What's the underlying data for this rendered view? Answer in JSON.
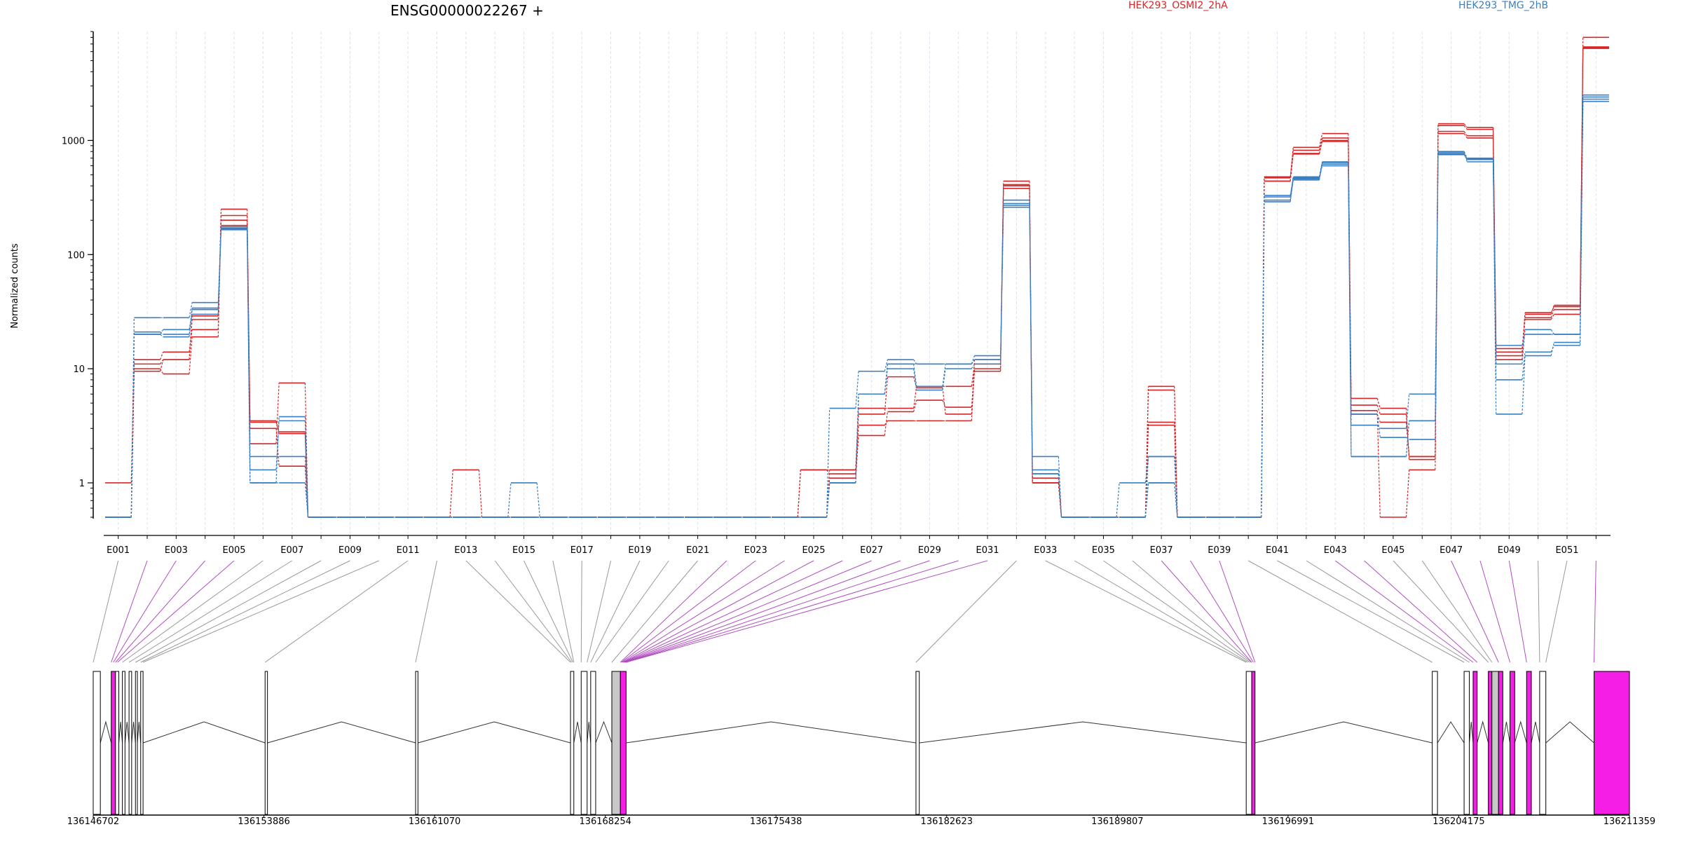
{
  "colors": {
    "series_a": "#d62728",
    "series_b": "#3a7fc1",
    "connector_plain": "#999999",
    "connector_highlight": "#b04fc0",
    "exon_plain": "#ffffff",
    "exon_grey": "#c8c8c8",
    "exon_magenta": "#f41ee6",
    "grid": "#dde3ee"
  },
  "chart_data": {
    "type": "line",
    "title": "ENSG00000022267 +",
    "ylabel": "Normalized counts",
    "yscale": "log",
    "ylim": [
      0.5,
      9000
    ],
    "yticks": [
      1,
      10,
      100,
      1000
    ],
    "ytick_labels": [
      "1",
      "10",
      "100",
      "1000"
    ],
    "legend": [
      {
        "name": "HEK293_OSMI2_2hA",
        "color": "#d62728"
      },
      {
        "name": "HEK293_TMG_2hB",
        "color": "#3a7fc1"
      }
    ],
    "exon_tick_labels": [
      "E001",
      "E003",
      "E005",
      "E007",
      "E009",
      "E011",
      "E013",
      "E015",
      "E017",
      "E019",
      "E021",
      "E023",
      "E025",
      "E027",
      "E029",
      "E031",
      "E033",
      "E035",
      "E037",
      "E039",
      "E041",
      "E043",
      "E045",
      "E047",
      "E049",
      "E051"
    ],
    "exon_count": 52,
    "exon_width_units": 0.9,
    "series": [
      {
        "group": "HEK293_OSMI2_2hA",
        "values": [
          1,
          12,
          14,
          22,
          250,
          3.5,
          2.7,
          0.5,
          0.5,
          0.5,
          0.5,
          0.5,
          1.3,
          0.5,
          0.5,
          0.5,
          0.5,
          0.5,
          0.5,
          0.5,
          0.5,
          0.5,
          0.5,
          0.5,
          1.3,
          1.3,
          4.5,
          4.5,
          7,
          7,
          11,
          440,
          1.1,
          0.5,
          0.5,
          0.5,
          7,
          0.5,
          0.5,
          0.5,
          440,
          760,
          1000,
          5.5,
          4.5,
          1.6,
          1400,
          1300,
          15,
          28,
          33,
          8000
        ]
      },
      {
        "group": "HEK293_OSMI2_2hA",
        "values": [
          0.5,
          10,
          9,
          19,
          220,
          2.2,
          7.5,
          0.5,
          0.5,
          0.5,
          0.5,
          0.5,
          0.5,
          0.5,
          0.5,
          0.5,
          0.5,
          0.5,
          0.5,
          0.5,
          0.5,
          0.5,
          0.5,
          0.5,
          1.3,
          1.2,
          3.2,
          3.5,
          3.5,
          3.5,
          10,
          410,
          1.0,
          0.5,
          0.5,
          0.5,
          6.5,
          0.5,
          0.5,
          0.5,
          470,
          870,
          1150,
          4.3,
          0.5,
          1.3,
          1200,
          1100,
          12,
          30,
          36,
          6500
        ]
      },
      {
        "group": "HEK293_OSMI2_2hA",
        "values": [
          0.5,
          11,
          12,
          29,
          200,
          3.0,
          1.4,
          0.5,
          0.5,
          0.5,
          0.5,
          0.5,
          0.5,
          0.5,
          0.5,
          0.5,
          0.5,
          0.5,
          0.5,
          0.5,
          0.5,
          0.5,
          0.5,
          0.5,
          0.5,
          1.1,
          2.6,
          4.2,
          5.3,
          4.6,
          9.5,
          400,
          1.0,
          0.5,
          0.5,
          0.5,
          3.4,
          0.5,
          0.5,
          0.5,
          480,
          820,
          1050,
          4.8,
          4.0,
          1.7,
          1350,
          1250,
          14,
          31,
          35,
          6600
        ]
      },
      {
        "group": "HEK293_OSMI2_2hA",
        "values": [
          0.5,
          9.5,
          12,
          27,
          180,
          3.4,
          2.8,
          0.5,
          0.5,
          0.5,
          0.5,
          0.5,
          0.5,
          0.5,
          0.5,
          0.5,
          0.5,
          0.5,
          0.5,
          0.5,
          0.5,
          0.5,
          0.5,
          0.5,
          0.5,
          1.3,
          4.0,
          8.5,
          6.8,
          4.0,
          12,
          380,
          1.0,
          0.5,
          0.5,
          0.5,
          3.2,
          0.5,
          0.5,
          0.5,
          440,
          770,
          980,
          4.0,
          3.4,
          1.7,
          1150,
          1050,
          13,
          27,
          30,
          6400
        ]
      },
      {
        "group": "HEK293_TMG_2hB",
        "values": [
          0.5,
          28,
          28,
          38,
          170,
          1.7,
          1.7,
          0.5,
          0.5,
          0.5,
          0.5,
          0.5,
          0.5,
          0.5,
          0.5,
          0.5,
          0.5,
          0.5,
          0.5,
          0.5,
          0.5,
          0.5,
          0.5,
          0.5,
          0.5,
          4.5,
          9.5,
          12,
          11,
          11,
          13,
          300,
          1.7,
          0.5,
          0.5,
          0.5,
          1.7,
          0.5,
          0.5,
          0.5,
          320,
          480,
          650,
          1.7,
          1.7,
          3.5,
          800,
          700,
          16,
          20,
          20,
          2500
        ]
      },
      {
        "group": "HEK293_TMG_2hB",
        "values": [
          0.5,
          21,
          20,
          34,
          165,
          1.0,
          1.0,
          0.5,
          0.5,
          0.5,
          0.5,
          0.5,
          0.5,
          0.5,
          0.5,
          0.5,
          0.5,
          0.5,
          0.5,
          0.5,
          0.5,
          0.5,
          0.5,
          0.5,
          0.5,
          1.0,
          6.0,
          11,
          11,
          11,
          12,
          270,
          1.2,
          0.5,
          0.5,
          0.5,
          1.0,
          0.5,
          0.5,
          0.5,
          330,
          470,
          640,
          3.2,
          3.0,
          6.0,
          760,
          690,
          8,
          14,
          16,
          2200
        ]
      },
      {
        "group": "HEK293_TMG_2hB",
        "values": [
          0.5,
          20,
          22,
          30,
          168,
          1.3,
          3.5,
          0.5,
          0.5,
          0.5,
          0.5,
          0.5,
          0.5,
          0.5,
          0.5,
          0.5,
          0.5,
          0.5,
          0.5,
          0.5,
          0.5,
          0.5,
          0.5,
          0.5,
          0.5,
          1.0,
          6.0,
          10,
          6.5,
          10,
          11,
          260,
          1.2,
          0.5,
          0.5,
          0.5,
          1.0,
          0.5,
          0.5,
          0.5,
          300,
          450,
          620,
          1.7,
          1.7,
          3.5,
          780,
          650,
          11,
          22,
          20,
          2300
        ]
      },
      {
        "group": "HEK293_TMG_2hB",
        "values": [
          0.5,
          20,
          19,
          33,
          175,
          1.0,
          3.8,
          0.5,
          0.5,
          0.5,
          0.5,
          0.5,
          0.5,
          0.5,
          1.0,
          0.5,
          0.5,
          0.5,
          0.5,
          0.5,
          0.5,
          0.5,
          0.5,
          0.5,
          0.5,
          1.0,
          6.0,
          11,
          7,
          11,
          12,
          280,
          1.3,
          0.5,
          0.5,
          1.0,
          1.7,
          0.5,
          0.5,
          0.5,
          290,
          460,
          600,
          4.0,
          2.5,
          2.4,
          750,
          680,
          4,
          13,
          17,
          2400
        ]
      }
    ],
    "genomic_axis": {
      "tick_labels": [
        "136146702",
        "136153886",
        "136161070",
        "136168254",
        "136175438",
        "136182623",
        "136189807",
        "136196991",
        "136204175",
        "136211359"
      ],
      "range": [
        136146702,
        136211359
      ]
    },
    "exon_models": [
      {
        "start": 136146702,
        "end": 136147002,
        "fill": "plain"
      },
      {
        "start": 136147460,
        "end": 136147640,
        "fill": "magenta"
      },
      {
        "start": 136147640,
        "end": 136147780,
        "fill": "plain"
      },
      {
        "start": 136147930,
        "end": 136148040,
        "fill": "plain"
      },
      {
        "start": 136148210,
        "end": 136148320,
        "fill": "plain"
      },
      {
        "start": 136148480,
        "end": 136148560,
        "fill": "plain"
      },
      {
        "start": 136148700,
        "end": 136148800,
        "fill": "plain"
      },
      {
        "start": 136153936,
        "end": 136154036,
        "fill": "plain"
      },
      {
        "start": 136160270,
        "end": 136160370,
        "fill": "plain"
      },
      {
        "start": 136166790,
        "end": 136166930,
        "fill": "plain"
      },
      {
        "start": 136167240,
        "end": 136167490,
        "fill": "plain"
      },
      {
        "start": 136167640,
        "end": 136167850,
        "fill": "plain"
      },
      {
        "start": 136168530,
        "end": 136168890,
        "fill": "grey"
      },
      {
        "start": 136168890,
        "end": 136169130,
        "fill": "magenta"
      },
      {
        "start": 136181330,
        "end": 136181470,
        "fill": "plain"
      },
      {
        "start": 136195230,
        "end": 136195460,
        "fill": "plain"
      },
      {
        "start": 136195460,
        "end": 136195600,
        "fill": "magenta"
      },
      {
        "start": 136203060,
        "end": 136203280,
        "fill": "plain"
      },
      {
        "start": 136204400,
        "end": 136204620,
        "fill": "plain"
      },
      {
        "start": 136204780,
        "end": 136204950,
        "fill": "magenta"
      },
      {
        "start": 136205420,
        "end": 136205570,
        "fill": "magenta"
      },
      {
        "start": 136205570,
        "end": 136205850,
        "fill": "grey"
      },
      {
        "start": 136205850,
        "end": 136206030,
        "fill": "magenta"
      },
      {
        "start": 136206330,
        "end": 136206530,
        "fill": "magenta"
      },
      {
        "start": 136207030,
        "end": 136207230,
        "fill": "magenta"
      },
      {
        "start": 136207580,
        "end": 136207840,
        "fill": "plain"
      },
      {
        "start": 136209870,
        "end": 136211359,
        "fill": "magenta"
      }
    ],
    "exon_connectors": [
      {
        "exon": 1,
        "target": 136146702,
        "highlight": false
      },
      {
        "exon": 2,
        "target": 136147460,
        "highlight": true
      },
      {
        "exon": 3,
        "target": 136147550,
        "highlight": true
      },
      {
        "exon": 4,
        "target": 136147640,
        "highlight": true
      },
      {
        "exon": 5,
        "target": 136147720,
        "highlight": true
      },
      {
        "exon": 6,
        "target": 136147930,
        "highlight": false
      },
      {
        "exon": 7,
        "target": 136148210,
        "highlight": false
      },
      {
        "exon": 8,
        "target": 136148480,
        "highlight": false
      },
      {
        "exon": 9,
        "target": 136148700,
        "highlight": false
      },
      {
        "exon": 10,
        "target": 136148800,
        "highlight": false
      },
      {
        "exon": 11,
        "target": 136153936,
        "highlight": false
      },
      {
        "exon": 12,
        "target": 136160270,
        "highlight": false
      },
      {
        "exon": 13,
        "target": 136166790,
        "highlight": false
      },
      {
        "exon": 14,
        "target": 136166840,
        "highlight": false
      },
      {
        "exon": 15,
        "target": 136166890,
        "highlight": false
      },
      {
        "exon": 16,
        "target": 136166930,
        "highlight": false
      },
      {
        "exon": 17,
        "target": 136167240,
        "highlight": false
      },
      {
        "exon": 18,
        "target": 136167490,
        "highlight": false
      },
      {
        "exon": 19,
        "target": 136167640,
        "highlight": false
      },
      {
        "exon": 20,
        "target": 136167850,
        "highlight": false
      },
      {
        "exon": 21,
        "target": 136168530,
        "highlight": false
      },
      {
        "exon": 22,
        "target": 136168890,
        "highlight": true
      },
      {
        "exon": 23,
        "target": 136168930,
        "highlight": true
      },
      {
        "exon": 24,
        "target": 136168970,
        "highlight": true
      },
      {
        "exon": 25,
        "target": 136169010,
        "highlight": true
      },
      {
        "exon": 26,
        "target": 136169040,
        "highlight": true
      },
      {
        "exon": 27,
        "target": 136169070,
        "highlight": true
      },
      {
        "exon": 28,
        "target": 136169100,
        "highlight": true
      },
      {
        "exon": 29,
        "target": 136169120,
        "highlight": true
      },
      {
        "exon": 30,
        "target": 136169130,
        "highlight": true
      },
      {
        "exon": 31,
        "target": 136169130,
        "highlight": true
      },
      {
        "exon": 32,
        "target": 136181330,
        "highlight": false
      },
      {
        "exon": 33,
        "target": 136195230,
        "highlight": false
      },
      {
        "exon": 34,
        "target": 136195300,
        "highlight": false
      },
      {
        "exon": 35,
        "target": 136195380,
        "highlight": false
      },
      {
        "exon": 36,
        "target": 136195440,
        "highlight": false
      },
      {
        "exon": 37,
        "target": 136195460,
        "highlight": true
      },
      {
        "exon": 38,
        "target": 136195530,
        "highlight": true
      },
      {
        "exon": 39,
        "target": 136195600,
        "highlight": true
      },
      {
        "exon": 40,
        "target": 136203060,
        "highlight": false
      },
      {
        "exon": 41,
        "target": 136204400,
        "highlight": false
      },
      {
        "exon": 42,
        "target": 136204620,
        "highlight": false
      },
      {
        "exon": 43,
        "target": 136204780,
        "highlight": true
      },
      {
        "exon": 44,
        "target": 136204950,
        "highlight": true
      },
      {
        "exon": 45,
        "target": 136205420,
        "highlight": false
      },
      {
        "exon": 46,
        "target": 136205570,
        "highlight": false
      },
      {
        "exon": 47,
        "target": 136205850,
        "highlight": true
      },
      {
        "exon": 48,
        "target": 136206330,
        "highlight": true
      },
      {
        "exon": 49,
        "target": 136207030,
        "highlight": true
      },
      {
        "exon": 50,
        "target": 136207580,
        "highlight": false
      },
      {
        "exon": 51,
        "target": 136207840,
        "highlight": false
      },
      {
        "exon": 52,
        "target": 136209870,
        "highlight": true
      }
    ]
  }
}
